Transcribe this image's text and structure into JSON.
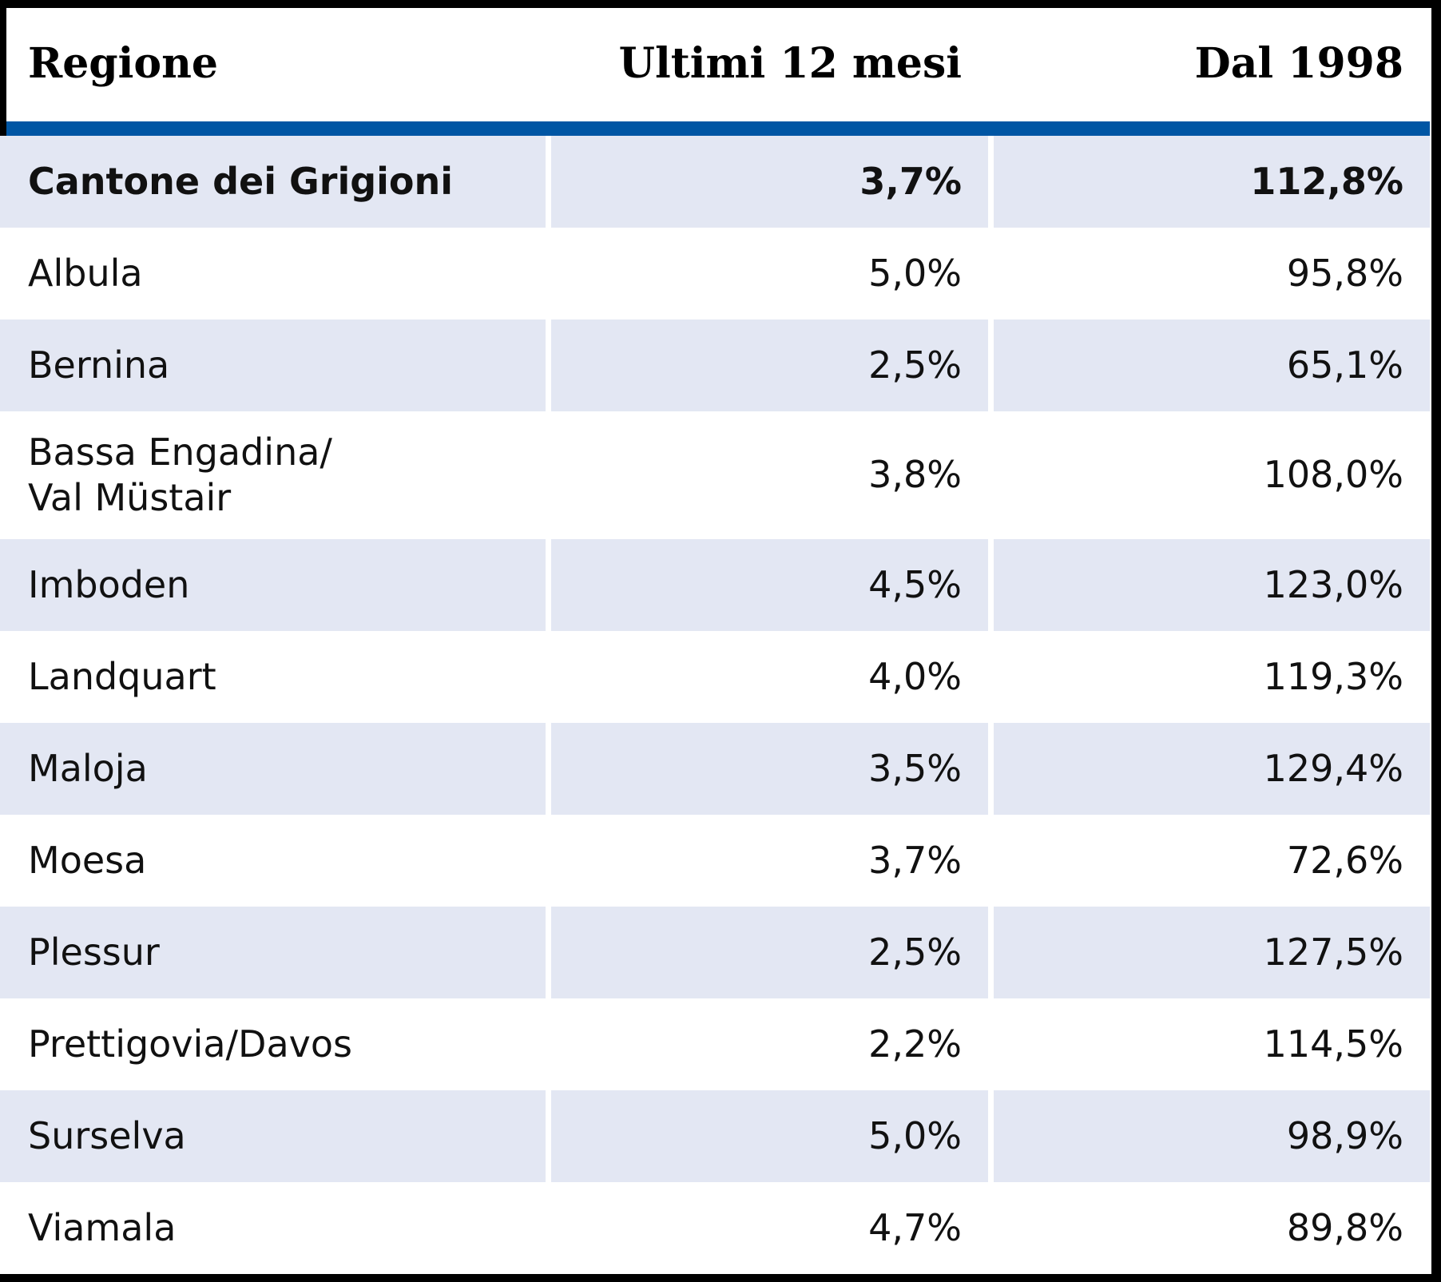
{
  "colors": {
    "accent_bar": "#0056a4",
    "row_shade": "#e3e7f3",
    "frame": "#000000",
    "text": "#111111"
  },
  "table": {
    "columns": [
      {
        "label": "Regione",
        "align": "left"
      },
      {
        "label": "Ultimi 12 mesi",
        "align": "right"
      },
      {
        "label": "Dal 1998",
        "align": "right"
      }
    ],
    "rows": [
      {
        "region": "Cantone dei Grigioni",
        "last_12_months": "3,7%",
        "since_1998": "112,8%",
        "emphasis": true
      },
      {
        "region": "Albula",
        "last_12_months": "5,0%",
        "since_1998": "95,8%"
      },
      {
        "region": "Bernina",
        "last_12_months": "2,5%",
        "since_1998": "65,1%"
      },
      {
        "region": "Bassa Engadina/\nVal Müstair",
        "last_12_months": "3,8%",
        "since_1998": "108,0%"
      },
      {
        "region": "Imboden",
        "last_12_months": "4,5%",
        "since_1998": "123,0%"
      },
      {
        "region": "Landquart",
        "last_12_months": "4,0%",
        "since_1998": "119,3%"
      },
      {
        "region": "Maloja",
        "last_12_months": "3,5%",
        "since_1998": "129,4%"
      },
      {
        "region": "Moesa",
        "last_12_months": "3,7%",
        "since_1998": "72,6%"
      },
      {
        "region": "Plessur",
        "last_12_months": "2,5%",
        "since_1998": "127,5%"
      },
      {
        "region": "Prettigovia/Davos",
        "last_12_months": "2,2%",
        "since_1998": "114,5%"
      },
      {
        "region": "Surselva",
        "last_12_months": "5,0%",
        "since_1998": "98,9%"
      },
      {
        "region": "Viamala",
        "last_12_months": "4,7%",
        "since_1998": "89,8%"
      }
    ]
  },
  "chart_data": {
    "type": "table",
    "title": "",
    "categories": [
      "Cantone dei Grigioni",
      "Albula",
      "Bernina",
      "Bassa Engadina/Val Müstair",
      "Imboden",
      "Landquart",
      "Maloja",
      "Moesa",
      "Plessur",
      "Prettigovia/Davos",
      "Surselva",
      "Viamala"
    ],
    "series": [
      {
        "name": "Ultimi 12 mesi",
        "unit": "%",
        "values": [
          3.7,
          5.0,
          2.5,
          3.8,
          4.5,
          4.0,
          3.5,
          3.7,
          2.5,
          2.2,
          5.0,
          4.7
        ]
      },
      {
        "name": "Dal 1998",
        "unit": "%",
        "values": [
          112.8,
          95.8,
          65.1,
          108.0,
          123.0,
          119.3,
          129.4,
          72.6,
          127.5,
          114.5,
          98.9,
          89.8
        ]
      }
    ]
  }
}
